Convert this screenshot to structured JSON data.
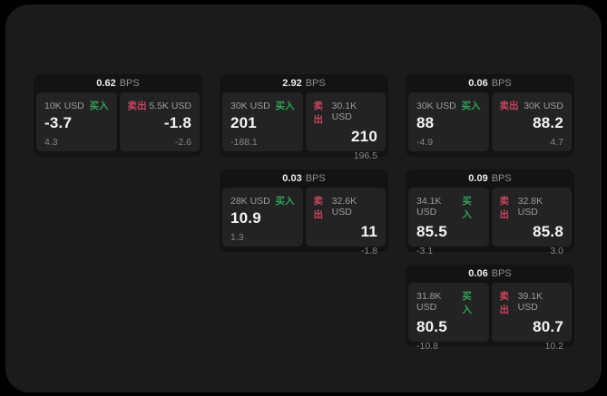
{
  "colors": {
    "background": "#000000",
    "surface": "#1b1b1b",
    "card": "#131313",
    "panel": "#232323",
    "buy_accent": "#31a356",
    "sell_accent": "#cb4460"
  },
  "bps_unit_label": "BPS",
  "cards": [
    {
      "bps": "0.62",
      "unit": "BPS",
      "buy": {
        "amount": "10K USD",
        "side_label": "买入",
        "price": "-3.7",
        "delta": "4.3"
      },
      "sell": {
        "amount": "5.5K USD",
        "side_label": "卖出",
        "price": "-1.8",
        "delta": "-2.6"
      }
    },
    {
      "bps": "2.92",
      "unit": "BPS",
      "buy": {
        "amount": "30K USD",
        "side_label": "买入",
        "price": "201",
        "delta": "-188.1"
      },
      "sell": {
        "amount": "30.1K USD",
        "side_label": "卖出",
        "price": "210",
        "delta": "196.5"
      }
    },
    {
      "bps": "0.06",
      "unit": "BPS",
      "buy": {
        "amount": "30K USD",
        "side_label": "买入",
        "price": "88",
        "delta": "-4.9"
      },
      "sell": {
        "amount": "30K USD",
        "side_label": "卖出",
        "price": "88.2",
        "delta": "4.7"
      }
    },
    {
      "bps": "0.03",
      "unit": "BPS",
      "buy": {
        "amount": "28K USD",
        "side_label": "买入",
        "price": "10.9",
        "delta": "1.3"
      },
      "sell": {
        "amount": "32.6K USD",
        "side_label": "卖出",
        "price": "11",
        "delta": "-1.8"
      }
    },
    {
      "bps": "0.09",
      "unit": "BPS",
      "buy": {
        "amount": "34.1K USD",
        "side_label": "买入",
        "price": "85.5",
        "delta": "-3.1"
      },
      "sell": {
        "amount": "32.8K USD",
        "side_label": "卖出",
        "price": "85.8",
        "delta": "3.0"
      }
    },
    {
      "bps": "0.06",
      "unit": "BPS",
      "buy": {
        "amount": "31.8K USD",
        "side_label": "买入",
        "price": "80.5",
        "delta": "-10.8"
      },
      "sell": {
        "amount": "39.1K USD",
        "side_label": "卖出",
        "price": "80.7",
        "delta": "10.2"
      }
    }
  ]
}
